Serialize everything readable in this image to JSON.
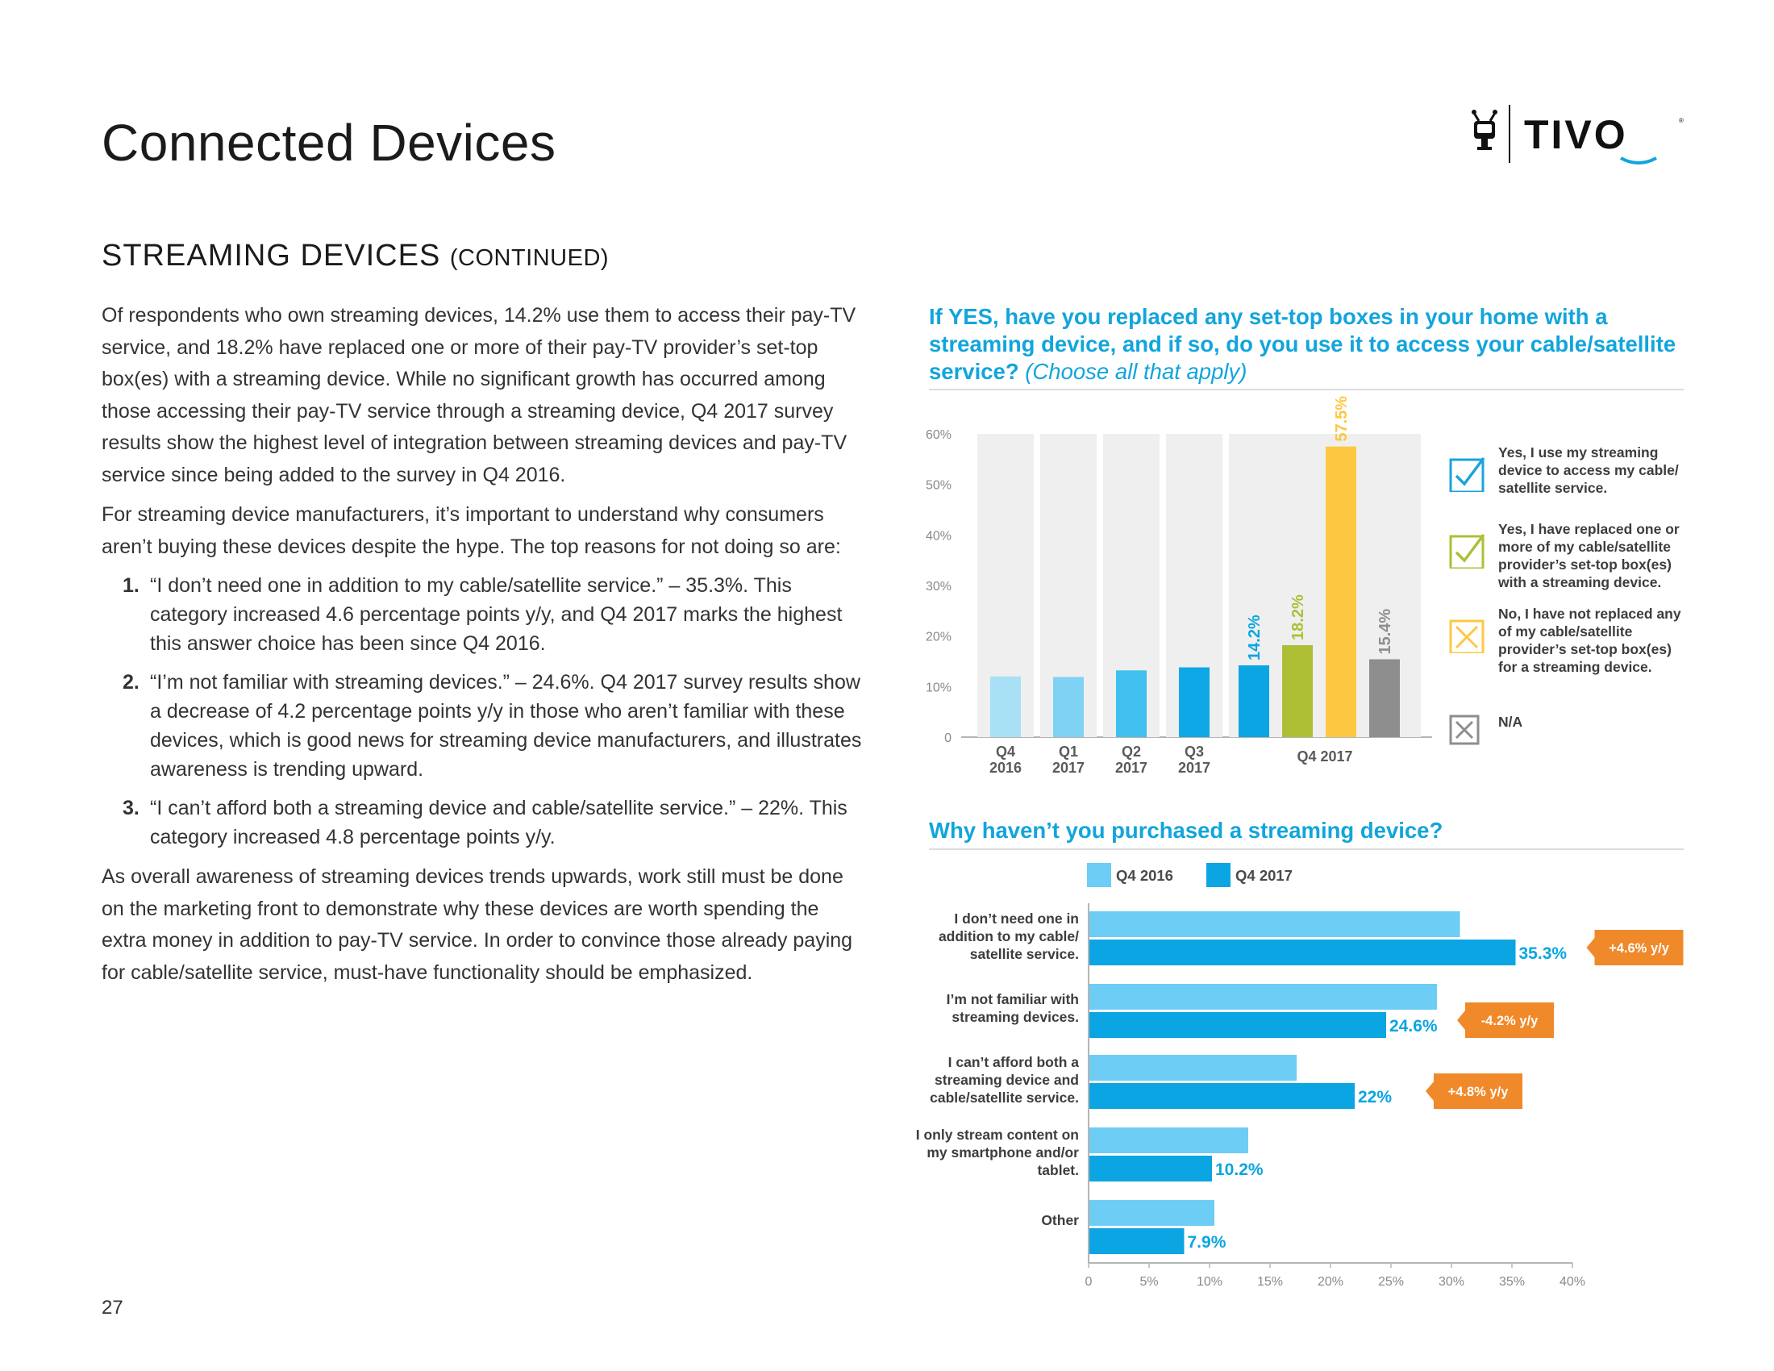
{
  "page": {
    "title": "Connected Devices",
    "section_heading": "STREAMING DEVICES",
    "section_heading_sub": "(CONTINUED)",
    "page_number": "27",
    "logo_text": "TIVO"
  },
  "body": {
    "para1": "Of respondents who own streaming devices, 14.2% use them to access their pay-TV service, and 18.2% have replaced one or more of their pay-TV provider’s set-top box(es) with a streaming device. While no significant growth has occurred among those accessing their pay-TV service through a streaming device, Q4 2017 survey results show the highest level of integration between streaming devices and pay-TV service since being added to the survey in Q4 2016.",
    "para2": "For streaming device manufacturers, it’s important to understand why consumers aren’t buying these devices despite the hype. The top reasons for not doing so are:",
    "list": [
      {
        "num": "1.",
        "text": "“I don’t need one in addition to my cable/satellite service.” – 35.3%. This category increased 4.6 percentage points y/y, and Q4 2017 marks the highest this answer choice has been since Q4 2016."
      },
      {
        "num": "2.",
        "text": "“I’m not familiar with streaming devices.” – 24.6%. Q4 2017 survey results show a decrease of 4.2 percentage points y/y in those who aren’t familiar with these devices, which is good news for streaming device manufacturers, and illustrates awareness is trending upward."
      },
      {
        "num": "3.",
        "text": "“I can’t afford both a streaming device and cable/satellite service.” – 22%. This category increased 4.8 percentage points y/y."
      }
    ],
    "para3": "As overall awareness of streaming devices trends upwards, work still must be done on the marketing front to demonstrate why these devices are worth spending the extra money in addition to pay-TV service. In order to convince those already paying for cable/satellite service, must-have functionality should be emphasized."
  },
  "chart_data": [
    {
      "type": "bar",
      "title": "If YES, have you replaced any set-top boxes in your home with a streaming device, and if so, do you use it to access your cable/satellite service?",
      "title_sub": "(Choose all that apply)",
      "ylim": [
        0,
        60
      ],
      "yticks": [
        "0",
        "10%",
        "20%",
        "30%",
        "40%",
        "50%",
        "60%"
      ],
      "grid": false,
      "categories": [
        "Q4\n2016",
        "Q1\n2017",
        "Q2\n2017",
        "Q3\n2017"
      ],
      "trend_values": [
        12.0,
        11.9,
        13.2,
        13.8
      ],
      "trend_colors": [
        "#a8e0f6",
        "#7fd2f3",
        "#3fc0ef",
        "#0ea8e6"
      ],
      "q4_2017": {
        "label": "Q4 2017",
        "bars": [
          {
            "value": 14.2,
            "label": "14.2%",
            "color": "#0aa5e2"
          },
          {
            "value": 18.2,
            "label": "18.2%",
            "color": "#aebf36"
          },
          {
            "value": 57.5,
            "label": "57.5%",
            "color": "#fdc841"
          },
          {
            "value": 15.4,
            "label": "15.4%",
            "color": "#8e8e8e"
          }
        ]
      },
      "legend": [
        {
          "text": "Yes, I use my streaming device to access my cable/ satellite service.",
          "color": "#1aa3dc",
          "mark": "check"
        },
        {
          "text": "Yes, I have replaced one or more of my cable/satellite provider’s set-top box(es) with a streaming device.",
          "color": "#aebf36",
          "mark": "check"
        },
        {
          "text": "No, I have not replaced any of my cable/satellite provider’s set-top box(es) for a streaming device.",
          "color": "#fdc841",
          "mark": "x"
        },
        {
          "text": "N/A",
          "color": "#8e8e8e",
          "mark": "x"
        }
      ]
    },
    {
      "type": "bar",
      "orientation": "horizontal",
      "title": "Why haven’t you purchased a streaming device?",
      "xlim": [
        0,
        40
      ],
      "xticks": [
        "0",
        "5%",
        "10%",
        "15%",
        "20%",
        "25%",
        "30%",
        "35%",
        "40%"
      ],
      "categories": [
        "I don’t need one in addition to my cable/ satellite service.",
        "I’m not familiar with streaming devices.",
        "I can’t afford both a streaming device and cable/satellite service.",
        "I only stream content on my smartphone and/or tablet.",
        "Other"
      ],
      "series": [
        {
          "name": "Q4 2016",
          "color": "#6dcdf4",
          "values": [
            30.7,
            28.8,
            17.2,
            13.2,
            10.4
          ]
        },
        {
          "name": "Q4 2017",
          "color": "#0aa5e2",
          "values": [
            35.3,
            24.6,
            22,
            10.2,
            7.9
          ],
          "labels": [
            "35.3%",
            "24.6%",
            "22%",
            "10.2%",
            "7.9%"
          ]
        }
      ],
      "yoy_callouts": [
        "+4.6% y/y",
        "-4.2% y/y",
        "+4.8% y/y",
        "",
        ""
      ],
      "callout_color": "#f0892a"
    }
  ]
}
